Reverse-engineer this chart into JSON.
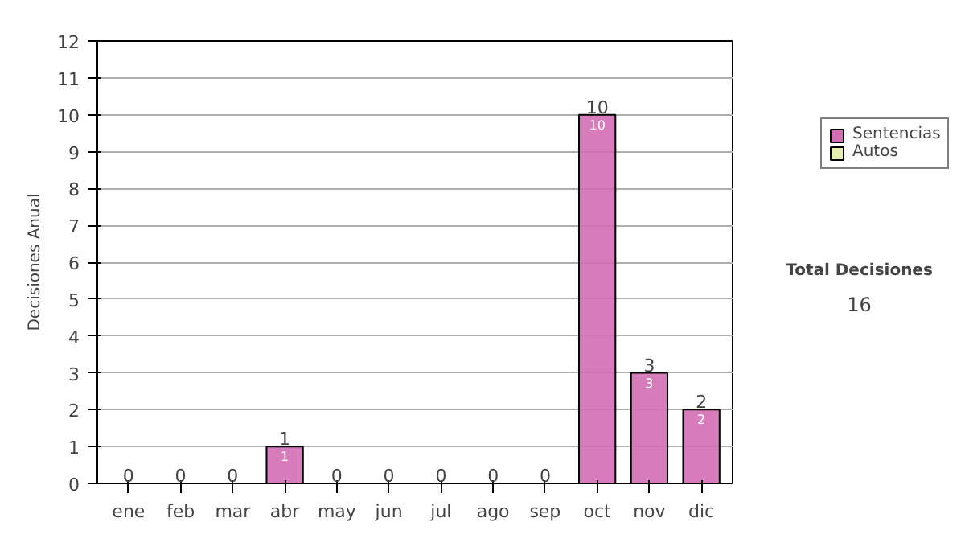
{
  "chart_data": {
    "type": "bar",
    "stacked": true,
    "ylabel": "Decisiones Anual",
    "categories": [
      "ene",
      "feb",
      "mar",
      "abr",
      "may",
      "jun",
      "jul",
      "ago",
      "sep",
      "oct",
      "nov",
      "dic"
    ],
    "series": [
      {
        "name": "Sentencias",
        "color": "#d36eb4",
        "values": [
          0,
          0,
          0,
          1,
          0,
          0,
          0,
          0,
          0,
          10,
          3,
          2
        ],
        "value_labels": [
          null,
          null,
          null,
          "1",
          null,
          null,
          null,
          null,
          null,
          "10",
          "3",
          "2"
        ]
      },
      {
        "name": "Autos",
        "color": "#e6eeb0",
        "values": [
          0,
          0,
          0,
          0,
          0,
          0,
          0,
          0,
          0,
          0,
          0,
          0
        ]
      }
    ],
    "totals": [
      "0",
      "0",
      "0",
      "1",
      "0",
      "0",
      "0",
      "0",
      "0",
      "10",
      "3",
      "2"
    ],
    "ylim": [
      0,
      12
    ],
    "yticks": [
      0,
      1,
      2,
      3,
      4,
      5,
      6,
      7,
      8,
      9,
      10,
      11,
      12
    ],
    "grid": "y",
    "legend": "right",
    "annotations": [
      "Total Decisiones",
      "16"
    ]
  }
}
